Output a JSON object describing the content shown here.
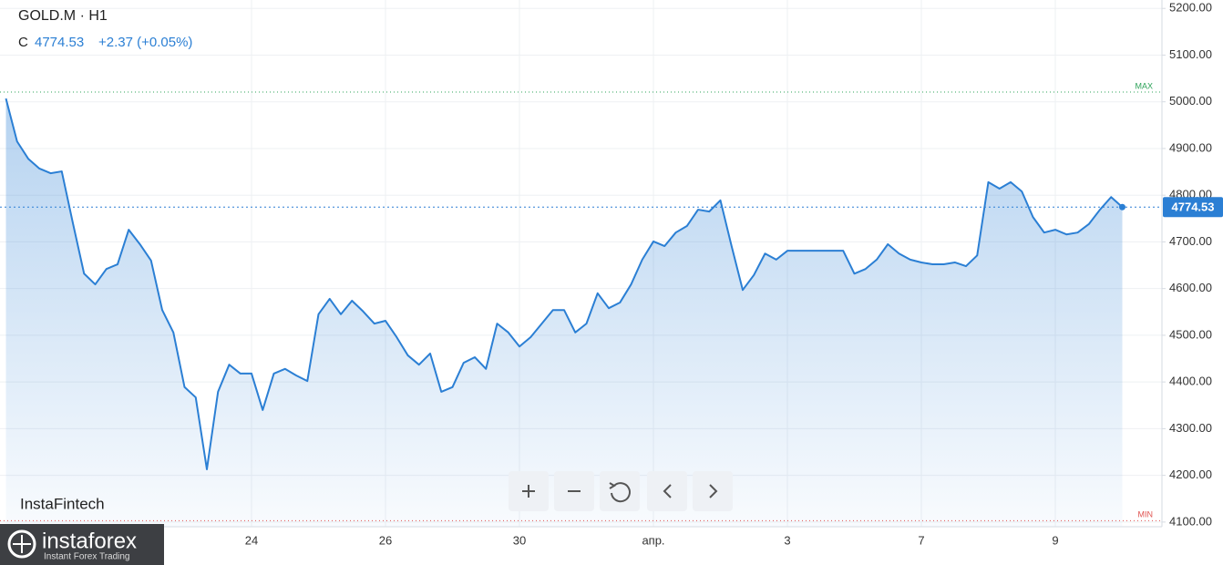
{
  "chart_data": {
    "type": "line",
    "title": "GOLD.M · H1",
    "close_label": "C",
    "close": 4774.53,
    "change": "+2.37 (+0.05%)",
    "last_price": 4774.53,
    "color": "#2b7fd4",
    "grid": true,
    "ylim": [
      4090,
      5218
    ],
    "yticks": [
      {
        "value": 4100,
        "label": "4100.00"
      },
      {
        "value": 4200,
        "label": "4200.00"
      },
      {
        "value": 4300,
        "label": "4300.00"
      },
      {
        "value": 4400,
        "label": "4400.00"
      },
      {
        "value": 4500,
        "label": "4500.00"
      },
      {
        "value": 4600,
        "label": "4600.00"
      },
      {
        "value": 4700,
        "label": "4700.00"
      },
      {
        "value": 4800,
        "label": "4800.00"
      },
      {
        "value": 4900,
        "label": "4900.00"
      },
      {
        "value": 5000,
        "label": "5000.00"
      },
      {
        "value": 5100,
        "label": "5100.00"
      },
      {
        "value": 5200,
        "label": "5200.00"
      }
    ],
    "max_line": {
      "label": "MAX",
      "value": 5021
    },
    "min_line": {
      "label": "MIN",
      "value": 4103
    },
    "categories": [
      null,
      null,
      null,
      null,
      null,
      null,
      null,
      null,
      null,
      null,
      null,
      null,
      null,
      null,
      null,
      null,
      null,
      null,
      null,
      null,
      null,
      null,
      "24",
      null,
      null,
      null,
      null,
      null,
      null,
      null,
      null,
      null,
      null,
      null,
      "26",
      null,
      null,
      null,
      null,
      null,
      null,
      null,
      null,
      null,
      null,
      null,
      "30",
      null,
      null,
      null,
      null,
      null,
      null,
      null,
      null,
      null,
      null,
      null,
      "апр.",
      null,
      null,
      null,
      null,
      null,
      null,
      null,
      null,
      null,
      null,
      null,
      "3",
      null,
      null,
      null,
      null,
      null,
      null,
      null,
      null,
      null,
      null,
      null,
      "7",
      null,
      null,
      null,
      null,
      null,
      null,
      null,
      null,
      null,
      null,
      null,
      "9",
      null,
      null,
      null,
      null,
      null,
      null
    ],
    "values": [
      5007,
      4915,
      4878,
      4857,
      4847,
      4851,
      4740,
      4632,
      4609,
      4642,
      4652,
      4726,
      4695,
      4660,
      4554,
      4506,
      4389,
      4367,
      4213,
      4379,
      4437,
      4418,
      4418,
      4340,
      4418,
      4428,
      4414,
      4402,
      4545,
      4578,
      4545,
      4574,
      4551,
      4525,
      4531,
      4496,
      4457,
      4437,
      4461,
      4379,
      4389,
      4441,
      4453,
      4428,
      4525,
      4506,
      4476,
      4496,
      4525,
      4554,
      4554,
      4506,
      4525,
      4590,
      4558,
      4570,
      4609,
      4662,
      4701,
      4691,
      4720,
      4734,
      4769,
      4765,
      4789,
      4691,
      4597,
      4629,
      4675,
      4662,
      4681,
      4681,
      4681,
      4681,
      4681,
      4681,
      4632,
      4642,
      4662,
      4695,
      4675,
      4662,
      4656,
      4652,
      4652,
      4656,
      4648,
      4671,
      4828,
      4814,
      4828,
      4808,
      4753,
      4720,
      4726,
      4716,
      4720,
      4738,
      4769,
      4796,
      4774.53
    ]
  },
  "branding": {
    "watermark": "InstaFintech",
    "logo": "instaforex",
    "logo_tagline": "Instant Forex Trading"
  }
}
